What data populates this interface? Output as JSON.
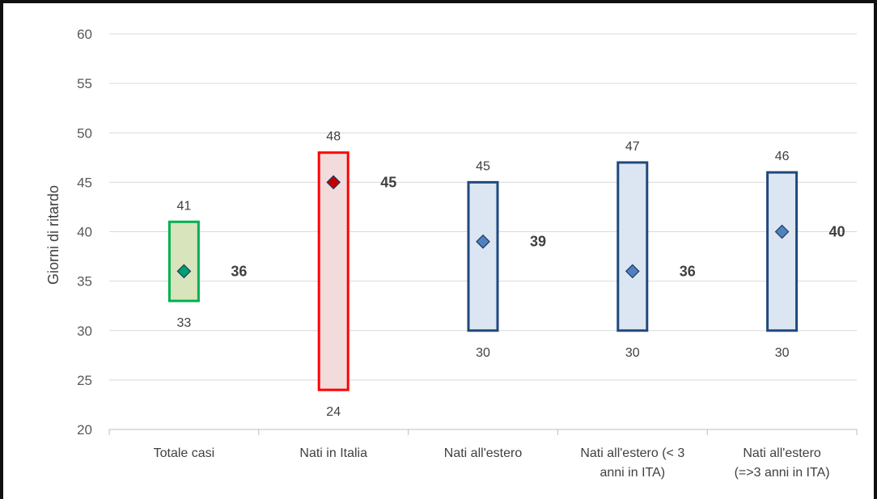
{
  "chart_data": {
    "type": "range",
    "title": "",
    "xlabel": "",
    "ylabel": "Giorni di ritardo",
    "ylim": [
      20,
      60
    ],
    "yticks": [
      20,
      25,
      30,
      35,
      40,
      45,
      50,
      55,
      60
    ],
    "grid": true,
    "categories": [
      [
        "Totale casi"
      ],
      [
        "Nati in Italia"
      ],
      [
        "Nati all'estero"
      ],
      [
        "Nati all'estero (< 3",
        "anni in ITA)"
      ],
      [
        "Nati all'estero",
        "(=>3 anni in ITA)"
      ]
    ],
    "series": [
      {
        "low": 33,
        "high": 41,
        "value": 36,
        "fill": "#d8e4bc",
        "stroke": "#00b050",
        "marker": "#00a070"
      },
      {
        "low": 24,
        "high": 48,
        "value": 45,
        "fill": "#f2dcdb",
        "stroke": "#ff0000",
        "marker": "#c00000"
      },
      {
        "low": 30,
        "high": 45,
        "value": 39,
        "fill": "#dce6f2",
        "stroke": "#1f497d",
        "marker": "#4f81bd"
      },
      {
        "low": 30,
        "high": 47,
        "value": 36,
        "fill": "#dce6f2",
        "stroke": "#1f497d",
        "marker": "#4f81bd"
      },
      {
        "low": 30,
        "high": 46,
        "value": 40,
        "fill": "#dce6f2",
        "stroke": "#1f497d",
        "marker": "#4f81bd"
      }
    ],
    "colors": {
      "gridline": "#d9d9d9",
      "axis": "#bfbfbf",
      "marker_outline": "#1f3864"
    }
  }
}
